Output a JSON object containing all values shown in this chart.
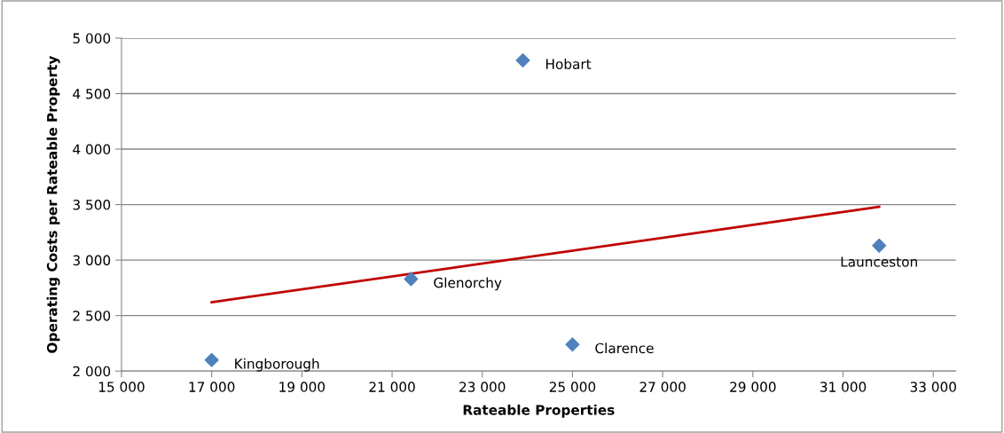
{
  "chart_data": {
    "type": "scatter",
    "xlabel": "Rateable Properties",
    "ylabel": "Operating Costs per Rateable Property",
    "series": [
      {
        "color": "#4f81bd",
        "marker": "diamond",
        "x": [
          17000,
          21420,
          23900,
          25000,
          31800
        ],
        "values": [
          2100,
          2830,
          4800,
          2240,
          3130
        ]
      },
      {
        "type": "line",
        "color": "#c00000",
        "marker": "none",
        "line_style": "solid",
        "x": [
          17000,
          31800
        ],
        "values": [
          2620,
          3480
        ]
      }
    ],
    "annotations": [
      {
        "text": "Kingborough",
        "x": 17000,
        "y": 2100
      },
      {
        "text": "Glenorchy",
        "x": 21420,
        "y": 2830
      },
      {
        "text": "Hobart",
        "x": 23900,
        "y": 4800
      },
      {
        "text": "Clarence",
        "x": 25000,
        "y": 2240
      },
      {
        "text": "Launceston",
        "x": 31800,
        "y": 3130
      }
    ],
    "xlim": [
      15000,
      33500
    ],
    "xticks": [
      {
        "value": 15000,
        "label": "15 000"
      },
      {
        "value": 17000,
        "label": "17 000"
      },
      {
        "value": 19000,
        "label": "19 000"
      },
      {
        "value": 21000,
        "label": "21 000"
      },
      {
        "value": 23000,
        "label": "23 000"
      },
      {
        "value": 25000,
        "label": "25 000"
      },
      {
        "value": 27000,
        "label": "27 000"
      },
      {
        "value": 29000,
        "label": "29 000"
      },
      {
        "value": 31000,
        "label": "31 000"
      },
      {
        "value": 33000,
        "label": "33 000"
      }
    ],
    "ylim": [
      2000,
      5000
    ],
    "yticks": [
      {
        "value": 2000,
        "label": "2 000"
      },
      {
        "value": 2500,
        "label": "2 500"
      },
      {
        "value": 3000,
        "label": "3 000"
      },
      {
        "value": 3500,
        "label": "3 500"
      },
      {
        "value": 4000,
        "label": "4 000"
      },
      {
        "value": 4500,
        "label": "4 500"
      },
      {
        "value": 5000,
        "label": "5 000"
      }
    ],
    "grid": "y",
    "legend": false
  }
}
